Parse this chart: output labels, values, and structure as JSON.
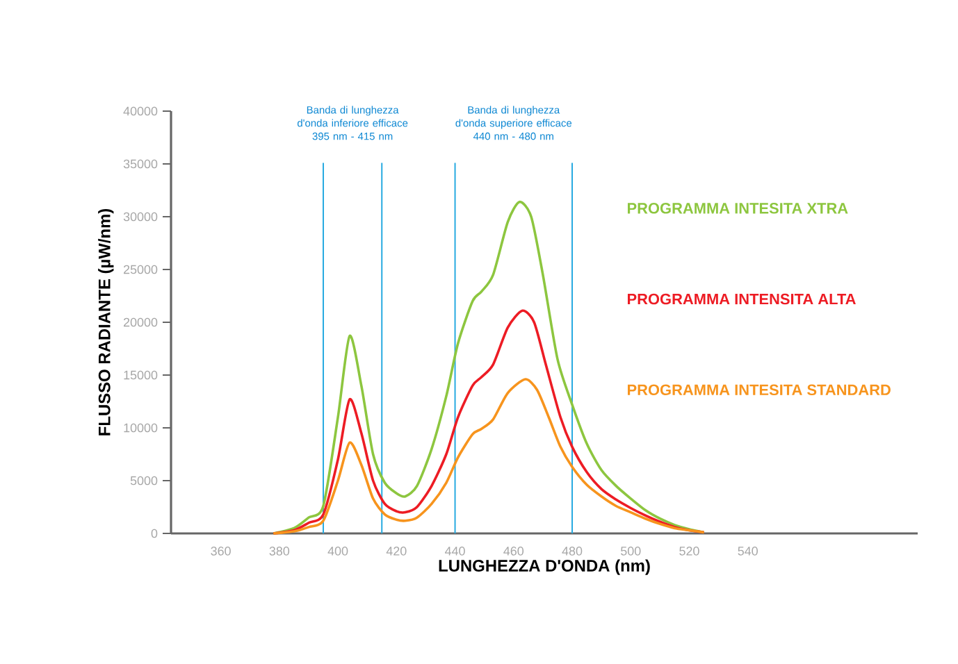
{
  "chart_data": {
    "type": "line",
    "xlabel": "LUNGHEZZA D'ONDA (nm)",
    "ylabel": "FLUSSO RADIANTE (µW/nm)",
    "xlim": [
      343,
      598
    ],
    "xticks": [
      360,
      380,
      400,
      420,
      440,
      460,
      480,
      500,
      520,
      540
    ],
    "ylim": [
      0,
      40000
    ],
    "yticks": [
      0,
      5000,
      10000,
      15000,
      20000,
      25000,
      30000,
      35000,
      40000
    ],
    "grid": false,
    "marker": "none",
    "line_style": "solid",
    "series": [
      {
        "name": "PROGRAMMA INTESITA XTRA",
        "color": "#8dc63f",
        "x": [
          378,
          385,
          390,
          395,
          400,
          404,
          408,
          412,
          416,
          420,
          423,
          427,
          432,
          437,
          441,
          446,
          449,
          453,
          458,
          462,
          466,
          470,
          475,
          480,
          485,
          490,
          495,
          500,
          505,
          510,
          515,
          520,
          525
        ],
        "values": [
          0,
          500,
          1500,
          2600,
          11000,
          18700,
          14000,
          7500,
          4800,
          3800,
          3500,
          4500,
          8000,
          13000,
          18000,
          22000,
          22900,
          24500,
          29500,
          31400,
          30000,
          24500,
          16500,
          12200,
          8500,
          6000,
          4500,
          3300,
          2200,
          1400,
          800,
          400,
          100
        ]
      },
      {
        "name": "PROGRAMMA INTENSITA ALTA",
        "color": "#ed1c24",
        "x": [
          378,
          385,
          390,
          395,
          400,
          404,
          408,
          412,
          416,
          420,
          423,
          427,
          432,
          437,
          441,
          446,
          449,
          453,
          458,
          463,
          467,
          471,
          476,
          480,
          485,
          490,
          495,
          500,
          505,
          510,
          515,
          520,
          525
        ],
        "values": [
          0,
          300,
          1000,
          1800,
          7000,
          12700,
          9500,
          5000,
          2800,
          2100,
          2000,
          2500,
          4500,
          7500,
          11000,
          14000,
          14800,
          16000,
          19500,
          21100,
          20000,
          16000,
          11000,
          8200,
          5800,
          4200,
          3200,
          2400,
          1700,
          1100,
          600,
          300,
          100
        ]
      },
      {
        "name": "PROGRAMMA INTESITA STANDARD",
        "color": "#f7941d",
        "x": [
          378,
          385,
          390,
          395,
          400,
          404,
          408,
          412,
          416,
          420,
          423,
          427,
          432,
          437,
          441,
          446,
          449,
          453,
          458,
          464,
          468,
          472,
          476,
          480,
          485,
          490,
          495,
          500,
          505,
          510,
          515,
          520,
          525
        ],
        "values": [
          0,
          200,
          600,
          1200,
          5000,
          8600,
          6500,
          3300,
          1800,
          1300,
          1200,
          1500,
          2800,
          4800,
          7200,
          9400,
          9900,
          10800,
          13300,
          14600,
          13600,
          11000,
          8200,
          6300,
          4600,
          3500,
          2600,
          2000,
          1400,
          900,
          500,
          300,
          100
        ]
      }
    ],
    "ref_lines": [
      {
        "axis": "x",
        "value": 395,
        "color": "#27aae1",
        "line_style": "solid"
      },
      {
        "axis": "x",
        "value": 415,
        "color": "#27aae1",
        "line_style": "solid"
      },
      {
        "axis": "x",
        "value": 440,
        "color": "#27aae1",
        "line_style": "solid"
      },
      {
        "axis": "x",
        "value": 480,
        "color": "#27aae1",
        "line_style": "solid"
      }
    ],
    "annotations": [
      "Banda di lunghezza d'onda inferiore efficace 395 nm - 415 nm",
      "Banda di lunghezza d'onda superiore efficace 440 nm - 480 nm"
    ]
  }
}
